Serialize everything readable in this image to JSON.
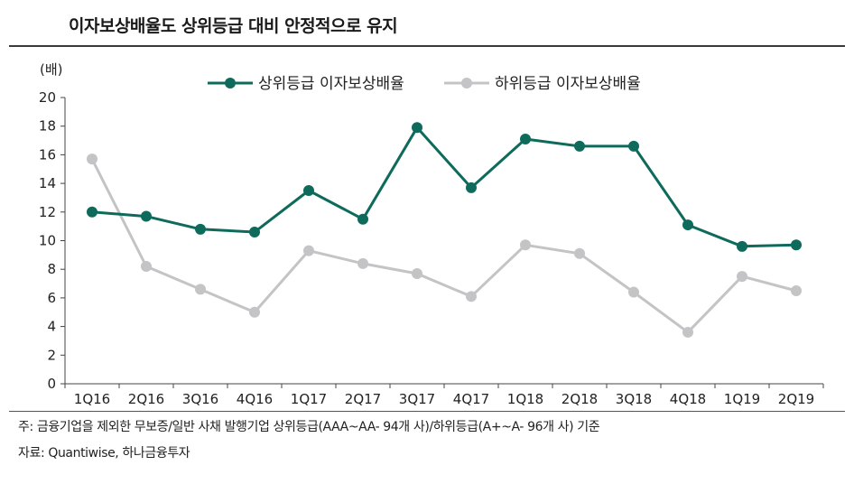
{
  "header": {
    "title": "이자보상배율도 상위등급 대비 안정적으로 유지"
  },
  "footnotes": {
    "note": "주: 금융기업을 제외한 무보증/일반 사채 발행기업 상위등급(AAA~AA- 94개 사)/하위등급(A+~A- 96개 사) 기준",
    "source": "자료: Quantiwise, 하나금융투자"
  },
  "chart_data": {
    "type": "line",
    "title": "이자보상배율도 상위등급 대비 안정적으로 유지",
    "ylabel": "(배)",
    "xlabel": "",
    "ylim": [
      0,
      20
    ],
    "yticks": [
      0,
      2,
      4,
      6,
      8,
      10,
      12,
      14,
      16,
      18,
      20
    ],
    "grid": false,
    "legend_position": "top",
    "categories": [
      "1Q16",
      "2Q16",
      "3Q16",
      "4Q16",
      "1Q17",
      "2Q17",
      "3Q17",
      "4Q17",
      "1Q18",
      "2Q18",
      "3Q18",
      "4Q18",
      "1Q19",
      "2Q19"
    ],
    "series": [
      {
        "name": "상위등급 이자보상배율",
        "color": "#0e6b5c",
        "values": [
          12.0,
          11.7,
          10.8,
          10.6,
          13.5,
          11.5,
          17.9,
          13.7,
          17.1,
          16.6,
          16.6,
          11.1,
          9.6,
          9.7
        ]
      },
      {
        "name": "하위등급 이자보상배율",
        "color": "#c4c4c6",
        "values": [
          15.7,
          8.2,
          6.6,
          5.0,
          9.3,
          8.4,
          7.7,
          6.1,
          9.7,
          9.1,
          6.4,
          3.6,
          7.5,
          6.5
        ]
      }
    ]
  }
}
